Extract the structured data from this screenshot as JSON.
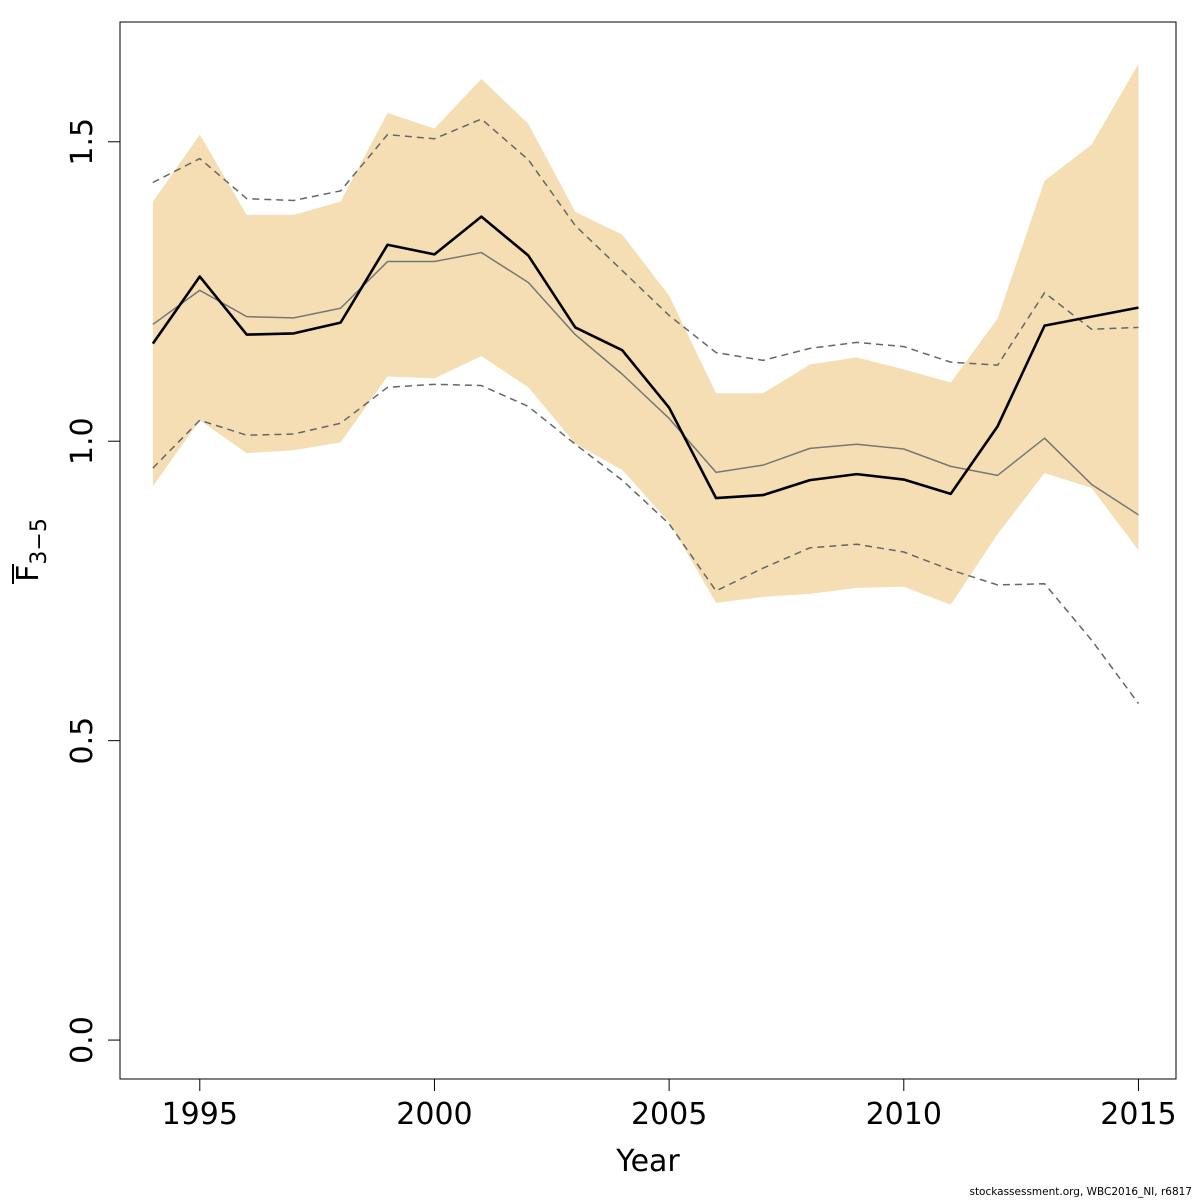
{
  "chart_data": {
    "type": "line",
    "xlabel": "Year",
    "ylabel": {
      "main": "F",
      "subscript": "3−5"
    },
    "x_ticks": [
      1995,
      2000,
      2005,
      2010,
      2015
    ],
    "y_ticks": [
      "0.0",
      "0.5",
      "1.0",
      "1.5"
    ],
    "xlim": [
      1993.3,
      2015.8
    ],
    "ylim": [
      -0.065,
      1.7
    ],
    "grid": false,
    "legend": "none",
    "years": [
      1994,
      1995,
      1996,
      1997,
      1998,
      1999,
      2000,
      2001,
      2002,
      2003,
      2004,
      2005,
      2006,
      2007,
      2008,
      2009,
      2010,
      2011,
      2012,
      2013,
      2014,
      2015
    ],
    "band": {
      "color": "#f5deb3",
      "lower": [
        0.925,
        1.035,
        0.98,
        0.985,
        0.998,
        1.108,
        1.105,
        1.142,
        1.09,
        0.996,
        0.952,
        0.865,
        0.73,
        0.74,
        0.745,
        0.755,
        0.757,
        0.727,
        0.845,
        0.947,
        0.922,
        0.818
      ],
      "upper": [
        1.4,
        1.512,
        1.378,
        1.378,
        1.4,
        1.548,
        1.522,
        1.605,
        1.53,
        1.383,
        1.345,
        1.243,
        1.08,
        1.08,
        1.128,
        1.14,
        1.12,
        1.098,
        1.205,
        1.435,
        1.495,
        1.63
      ]
    },
    "series": [
      {
        "style": "solid",
        "color": "#000000",
        "width": 2.6,
        "values": [
          1.163,
          1.275,
          1.178,
          1.18,
          1.198,
          1.328,
          1.312,
          1.375,
          1.31,
          1.19,
          1.152,
          1.056,
          0.905,
          0.91,
          0.935,
          0.945,
          0.936,
          0.912,
          1.025,
          1.193,
          1.208,
          1.223
        ]
      },
      {
        "style": "solid",
        "color": "#777777",
        "width": 1.5,
        "values": [
          1.195,
          1.252,
          1.208,
          1.206,
          1.222,
          1.3,
          1.3,
          1.315,
          1.265,
          1.178,
          1.112,
          1.038,
          0.948,
          0.96,
          0.988,
          0.995,
          0.987,
          0.958,
          0.943,
          1.005,
          0.928,
          0.877
        ]
      },
      {
        "style": "dashed",
        "color": "#666666",
        "width": 1.5,
        "values": [
          1.432,
          1.472,
          1.405,
          1.402,
          1.418,
          1.512,
          1.505,
          1.538,
          1.47,
          1.36,
          1.285,
          1.21,
          1.148,
          1.135,
          1.155,
          1.165,
          1.158,
          1.132,
          1.127,
          1.248,
          1.187,
          1.19
        ]
      },
      {
        "style": "dashed",
        "color": "#666666",
        "width": 1.5,
        "values": [
          0.955,
          1.035,
          1.01,
          1.012,
          1.03,
          1.09,
          1.095,
          1.093,
          1.058,
          0.995,
          0.935,
          0.862,
          0.75,
          0.788,
          0.822,
          0.828,
          0.815,
          0.785,
          0.76,
          0.762,
          0.668,
          0.562
        ]
      }
    ]
  },
  "footer": "stockassessment.org, WBC2016_NI, r6817"
}
